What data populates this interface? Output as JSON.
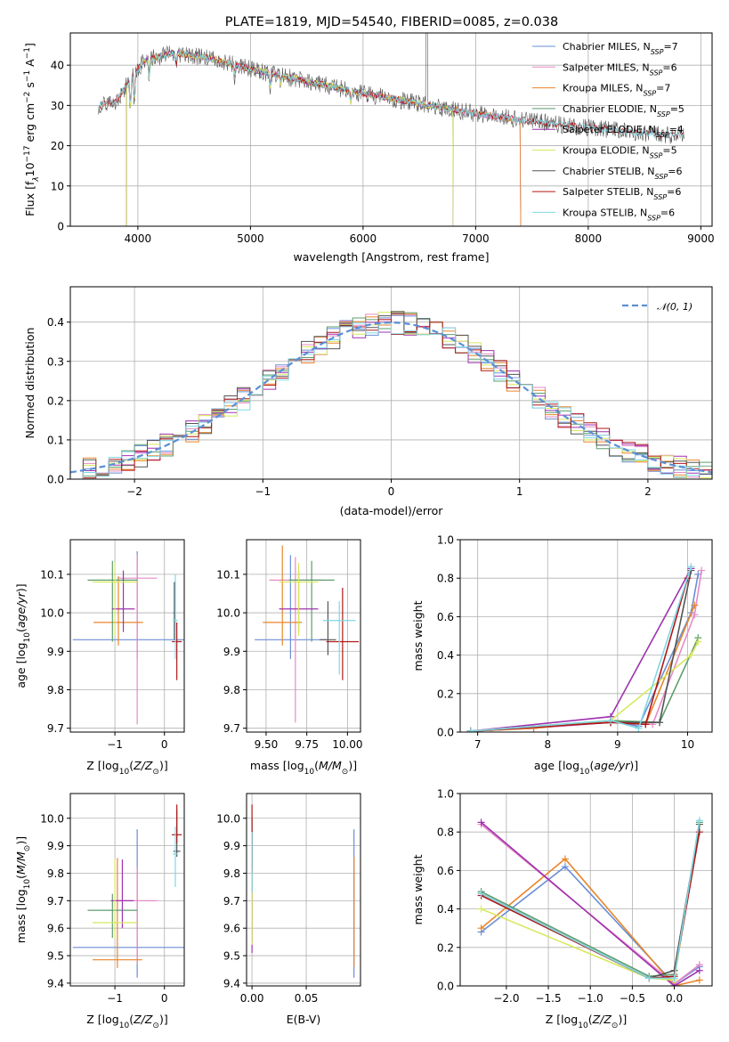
{
  "title": "PLATE=1819, MJD=54540, FIBERID=0085, z=0.038",
  "colors": [
    "#6a8fd6",
    "#e58ac6",
    "#e8852b",
    "#5e9e6e",
    "#a032b0",
    "#d8e85e",
    "#555555",
    "#b01818",
    "#7fd8e6"
  ],
  "chart_data": [
    {
      "id": "spectrum",
      "type": "line",
      "xlabel": "wavelength [Angstrom, rest frame]",
      "ylabel": "Flux [f",
      "xlim": [
        3400,
        9100
      ],
      "ylim": [
        0,
        48
      ],
      "xticks": [
        4000,
        5000,
        6000,
        7000,
        8000,
        9000
      ],
      "yticks": [
        0,
        10,
        20,
        30,
        40
      ],
      "legend_position": "upper-right",
      "series": [
        {
          "name": "Chabrier MILES, N",
          "nssp": "=7",
          "range": [
            3650,
            7400
          ]
        },
        {
          "name": "Salpeter MILES, N",
          "nssp": "=6",
          "range": [
            3650,
            7400
          ]
        },
        {
          "name": "Kroupa MILES, N",
          "nssp": "=7",
          "range": [
            3650,
            7400
          ]
        },
        {
          "name": "Chabrier ELODIE, N",
          "nssp": "=5",
          "range": [
            3900,
            6800
          ]
        },
        {
          "name": "Salpeter ELODIE, N",
          "nssp": "=4",
          "range": [
            3900,
            6800
          ]
        },
        {
          "name": "Kroupa ELODIE, N",
          "nssp": "=5",
          "range": [
            3900,
            6800
          ]
        },
        {
          "name": "Chabrier STELIB, N",
          "nssp": "=6",
          "range": [
            3650,
            8850
          ]
        },
        {
          "name": "Salpeter STELIB, N",
          "nssp": "=6",
          "range": [
            3650,
            8850
          ]
        },
        {
          "name": "Kroupa STELIB, N",
          "nssp": "=6",
          "range": [
            3650,
            8850
          ]
        }
      ],
      "continuum": [
        [
          3650,
          30
        ],
        [
          3800,
          31
        ],
        [
          3950,
          37
        ],
        [
          4050,
          41
        ],
        [
          4300,
          43
        ],
        [
          4600,
          42
        ],
        [
          5000,
          39
        ],
        [
          5500,
          36
        ],
        [
          6000,
          33
        ],
        [
          6500,
          30.5
        ],
        [
          7000,
          28
        ],
        [
          7500,
          26
        ],
        [
          8000,
          24.5
        ],
        [
          8500,
          23
        ],
        [
          8850,
          22.5
        ]
      ]
    },
    {
      "id": "residuals",
      "type": "histogram",
      "xlabel": "(data-model)/error",
      "ylabel": "Normed distribution",
      "xlim": [
        -2.5,
        2.5
      ],
      "ylim": [
        0,
        0.49
      ],
      "xticks": [
        -2,
        -1,
        0,
        1,
        2
      ],
      "yticks": [
        0.0,
        0.1,
        0.2,
        0.3,
        0.4
      ],
      "legend": "𝒩(0, 1)",
      "legend_position": "upper-right",
      "bin_width": 0.1,
      "reference_curve": "normal(0,1)"
    },
    {
      "id": "age-vs-Z",
      "type": "errorbar",
      "xlabel": "Z [log",
      "ylabel": "age  [log",
      "xlim": [
        -1.9,
        0.4
      ],
      "ylim": [
        9.69,
        10.19
      ],
      "xticks": [
        -1,
        0
      ],
      "yticks": [
        9.7,
        9.8,
        9.9,
        10.0,
        10.1
      ],
      "points": [
        {
          "x": -0.55,
          "xerr": [
            1.3,
            1.3
          ],
          "y": 9.93,
          "yerr": [
            0.05,
            0.23
          ]
        },
        {
          "x": -0.55,
          "xerr": [
            0.4,
            0.4
          ],
          "y": 10.09,
          "yerr": [
            0.38,
            0.06
          ]
        },
        {
          "x": -0.93,
          "xerr": [
            0.5,
            0.5
          ],
          "y": 9.975,
          "yerr": [
            0.06,
            0.12
          ]
        },
        {
          "x": -1.05,
          "xerr": [
            0.5,
            0.5
          ],
          "y": 10.085,
          "yerr": [
            0.16,
            0.05
          ]
        },
        {
          "x": -0.83,
          "xerr": [
            0.23,
            0.23
          ],
          "y": 10.01,
          "yerr": [
            0.06,
            0.1
          ]
        },
        {
          "x": -1.0,
          "xerr": [
            0.45,
            0.45
          ],
          "y": 10.08,
          "yerr": [
            0.14,
            0.05
          ]
        },
        {
          "x": 0.2,
          "xerr": [
            0.02,
            0.02
          ],
          "y": 10.0,
          "yerr": [
            0.07,
            0.08
          ]
        },
        {
          "x": 0.25,
          "xerr": [
            0.1,
            0.1
          ],
          "y": 9.925,
          "yerr": [
            0.1,
            0.05
          ]
        },
        {
          "x": 0.22,
          "xerr": [
            0.05,
            0.05
          ],
          "y": 9.98,
          "yerr": [
            0.1,
            0.12
          ]
        }
      ]
    },
    {
      "id": "age-vs-mass",
      "type": "errorbar",
      "xlabel": "mass [log",
      "ylabel": "",
      "xlim": [
        9.38,
        10.08
      ],
      "ylim": [
        9.69,
        10.19
      ],
      "xticks": [
        9.5,
        9.75,
        10.0
      ],
      "yticks": [
        9.7,
        9.8,
        9.9,
        10.0,
        10.1
      ],
      "points": [
        {
          "x": 9.65,
          "xerr": [
            0.22,
            0.22
          ],
          "y": 9.93,
          "yerr": [
            0.05,
            0.22
          ]
        },
        {
          "x": 9.68,
          "xerr": [
            0.16,
            0.16
          ],
          "y": 10.085,
          "yerr": [
            0.37,
            0.06
          ]
        },
        {
          "x": 9.6,
          "xerr": [
            0.12,
            0.12
          ],
          "y": 9.975,
          "yerr": [
            0.06,
            0.2
          ]
        },
        {
          "x": 9.78,
          "xerr": [
            0.14,
            0.14
          ],
          "y": 10.085,
          "yerr": [
            0.16,
            0.05
          ]
        },
        {
          "x": 9.7,
          "xerr": [
            0.12,
            0.12
          ],
          "y": 10.01,
          "yerr": [
            0.06,
            0.1
          ]
        },
        {
          "x": 9.7,
          "xerr": [
            0.12,
            0.12
          ],
          "y": 10.08,
          "yerr": [
            0.14,
            0.05
          ]
        },
        {
          "x": 9.88,
          "xerr": [
            0.05,
            0.05
          ],
          "y": 9.93,
          "yerr": [
            0.04,
            0.1
          ]
        },
        {
          "x": 9.97,
          "xerr": [
            0.1,
            0.1
          ],
          "y": 9.925,
          "yerr": [
            0.1,
            0.14
          ]
        },
        {
          "x": 9.95,
          "xerr": [
            0.1,
            0.1
          ],
          "y": 9.98,
          "yerr": [
            0.14,
            0.05
          ]
        }
      ]
    },
    {
      "id": "weight-vs-age",
      "type": "line",
      "xlabel": "age  [log",
      "ylabel": "mass weight",
      "xlim": [
        6.75,
        10.35
      ],
      "ylim": [
        0,
        1.0
      ],
      "xticks": [
        7,
        8,
        9,
        10
      ],
      "yticks": [
        0.0,
        0.2,
        0.4,
        0.6,
        0.8,
        1.0
      ],
      "series": [
        {
          "x": [
            6.9,
            7.8,
            8.9,
            9.3,
            10.05,
            10.15
          ],
          "y": [
            0.005,
            0.02,
            0.06,
            0.03,
            0.62,
            0.82
          ]
        },
        {
          "x": [
            6.9,
            7.8,
            8.9,
            9.5,
            10.1,
            10.2
          ],
          "y": [
            0.005,
            0.02,
            0.05,
            0.04,
            0.61,
            0.84
          ]
        },
        {
          "x": [
            6.9,
            7.8,
            8.9,
            9.4,
            10.1
          ],
          "y": [
            0.005,
            0.02,
            0.06,
            0.04,
            0.66
          ]
        },
        {
          "x": [
            6.9,
            8.9,
            9.6,
            10.15
          ],
          "y": [
            0.005,
            0.06,
            0.05,
            0.49
          ]
        },
        {
          "x": [
            6.9,
            8.9,
            10.05
          ],
          "y": [
            0.005,
            0.08,
            0.85
          ]
        },
        {
          "x": [
            6.9,
            8.9,
            10.05,
            10.15
          ],
          "y": [
            0.005,
            0.06,
            0.4,
            0.47
          ]
        },
        {
          "x": [
            6.9,
            8.9,
            9.6,
            10.05
          ],
          "y": [
            0.005,
            0.05,
            0.05,
            0.84
          ]
        },
        {
          "x": [
            6.9,
            8.9,
            9.4,
            10.0
          ],
          "y": [
            0.005,
            0.05,
            0.04,
            0.8
          ]
        },
        {
          "x": [
            6.9,
            8.9,
            9.3,
            10.05
          ],
          "y": [
            0.005,
            0.06,
            0.02,
            0.86
          ]
        }
      ]
    },
    {
      "id": "mass-vs-Z",
      "type": "errorbar",
      "xlabel": "Z [log",
      "ylabel": "mass [log",
      "xlim": [
        -1.9,
        0.4
      ],
      "ylim": [
        9.39,
        10.09
      ],
      "xticks": [
        -1,
        0
      ],
      "yticks": [
        9.4,
        9.5,
        9.6,
        9.7,
        9.8,
        9.9,
        10.0
      ],
      "points": [
        {
          "x": -0.55,
          "xerr": [
            1.3,
            1.3
          ],
          "y": 9.53,
          "yerr": [
            0.11,
            0.43
          ]
        },
        {
          "x": -0.55,
          "xerr": [
            0.4,
            0.4
          ],
          "y": 9.7,
          "yerr": [
            0.23,
            0.12
          ]
        },
        {
          "x": -0.95,
          "xerr": [
            0.5,
            0.5
          ],
          "y": 9.485,
          "yerr": [
            0.03,
            0.37
          ]
        },
        {
          "x": -1.05,
          "xerr": [
            0.5,
            0.5
          ],
          "y": 9.665,
          "yerr": [
            0.1,
            0.06
          ]
        },
        {
          "x": -0.85,
          "xerr": [
            0.23,
            0.23
          ],
          "y": 9.7,
          "yerr": [
            0.1,
            0.15
          ]
        },
        {
          "x": -1.0,
          "xerr": [
            0.45,
            0.45
          ],
          "y": 9.62,
          "yerr": [
            0.06,
            0.23
          ]
        },
        {
          "x": 0.25,
          "xerr": [
            0.07,
            0.07
          ],
          "y": 9.88,
          "yerr": [
            0.02,
            0.15
          ]
        },
        {
          "x": 0.25,
          "xerr": [
            0.1,
            0.1
          ],
          "y": 9.94,
          "yerr": [
            0.03,
            0.11
          ]
        },
        {
          "x": 0.22,
          "xerr": [
            0.05,
            0.05
          ],
          "y": 9.87,
          "yerr": [
            0.12,
            0.1
          ]
        }
      ]
    },
    {
      "id": "mass-vs-ebv",
      "type": "errorbar",
      "xlabel": "E(B-V)",
      "ylabel": "",
      "xlim": [
        -0.005,
        0.1
      ],
      "ylim": [
        9.39,
        10.09
      ],
      "xticks": [
        0.0,
        0.05
      ],
      "yticks": [
        9.4,
        9.5,
        9.6,
        9.7,
        9.8,
        9.9,
        10.0
      ],
      "points": [
        {
          "x": 0.094,
          "y": 9.6,
          "yerr": [
            0.18,
            0.36
          ]
        },
        {
          "x": 0.0,
          "y": 9.75,
          "yerr": [
            0.2,
            0.2
          ]
        },
        {
          "x": 0.094,
          "y": 9.58,
          "yerr": [
            0.12,
            0.28
          ]
        },
        {
          "x": 0.0,
          "y": 9.7,
          "yerr": [
            0.15,
            0.25
          ]
        },
        {
          "x": 0.0,
          "y": 9.58,
          "yerr": [
            0.07,
            0.27
          ]
        },
        {
          "x": 0.0,
          "y": 9.7,
          "yerr": [
            0.16,
            0.15
          ]
        },
        {
          "x": 0.0,
          "y": 9.9,
          "yerr": [
            0.08,
            0.1
          ]
        },
        {
          "x": 0.0,
          "y": 9.9,
          "yerr": [
            0.1,
            0.15
          ]
        },
        {
          "x": 0.0,
          "y": 9.85,
          "yerr": [
            0.12,
            0.1
          ]
        }
      ]
    },
    {
      "id": "weight-vs-Z",
      "type": "line",
      "xlabel": "Z [log",
      "ylabel": "mass weight",
      "xlim": [
        -2.55,
        0.45
      ],
      "ylim": [
        0,
        1.0
      ],
      "xticks": [
        -2.0,
        -1.5,
        -1.0,
        -0.5,
        0.0
      ],
      "yticks": [
        0.0,
        0.2,
        0.4,
        0.6,
        0.8,
        1.0
      ],
      "series": [
        {
          "x": [
            -2.3,
            -1.3,
            0.0,
            0.3
          ],
          "y": [
            0.28,
            0.62,
            0.01,
            0.1
          ]
        },
        {
          "x": [
            -2.3,
            0.0,
            0.3
          ],
          "y": [
            0.84,
            0.01,
            0.11
          ]
        },
        {
          "x": [
            -2.3,
            -1.3,
            0.0,
            0.3
          ],
          "y": [
            0.3,
            0.66,
            0.0,
            0.03
          ]
        },
        {
          "x": [
            -2.3,
            -0.3,
            0.0,
            0.3
          ],
          "y": [
            0.49,
            0.05,
            0.06,
            0.85
          ]
        },
        {
          "x": [
            -2.3,
            0.0,
            0.3
          ],
          "y": [
            0.85,
            0.0,
            0.08
          ]
        },
        {
          "x": [
            -2.3,
            -0.3,
            0.0,
            0.3
          ],
          "y": [
            0.4,
            0.04,
            0.03,
            0.84
          ]
        },
        {
          "x": [
            -2.3,
            -0.3,
            0.0,
            0.3
          ],
          "y": [
            0.48,
            0.04,
            0.08,
            0.84
          ]
        },
        {
          "x": [
            -2.3,
            -0.3,
            0.0,
            0.3
          ],
          "y": [
            0.47,
            0.04,
            0.05,
            0.8
          ]
        },
        {
          "x": [
            -2.3,
            -0.3,
            0.0,
            0.3
          ],
          "y": [
            0.48,
            0.04,
            0.04,
            0.86
          ]
        }
      ]
    }
  ]
}
